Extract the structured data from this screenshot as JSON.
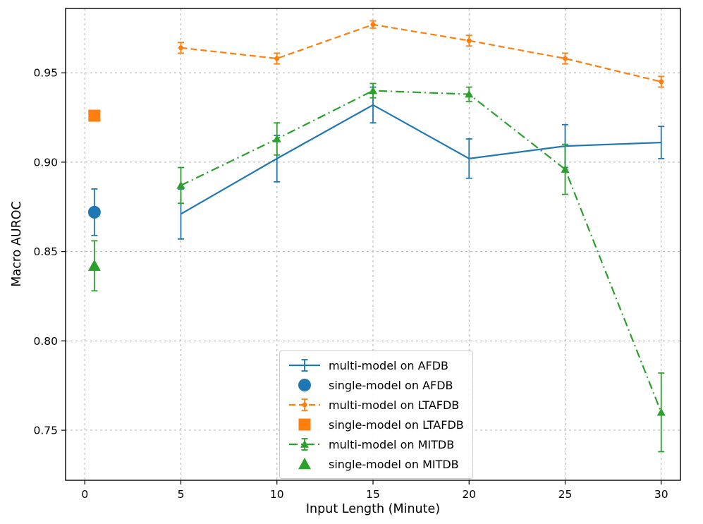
{
  "chart_data": {
    "type": "line",
    "title": "",
    "xlabel": "Input Length (Minute)",
    "ylabel": "Macro AUROC",
    "xlim": [
      -1.0,
      31.0
    ],
    "ylim": [
      0.722,
      0.986
    ],
    "xticks": [
      0,
      5,
      10,
      15,
      20,
      25,
      30
    ],
    "yticks": [
      0.75,
      0.8,
      0.85,
      0.9,
      0.95
    ],
    "grid": true,
    "legend_position": "lower-center",
    "series": [
      {
        "name": "multi-model on AFDB",
        "color": "#1f77b4",
        "line_style": "solid",
        "marker": "none",
        "marker_size": 0,
        "x": [
          5,
          10,
          15,
          20,
          25,
          30
        ],
        "y": [
          0.871,
          0.902,
          0.932,
          0.902,
          0.909,
          0.911
        ],
        "yerr": [
          0.014,
          0.013,
          0.01,
          0.011,
          0.012,
          0.009
        ]
      },
      {
        "name": "single-model on AFDB",
        "color": "#1f77b4",
        "line_style": "none",
        "marker": "circle",
        "marker_size": 9,
        "x": [
          0.5
        ],
        "y": [
          0.872
        ],
        "yerr": [
          0.013
        ]
      },
      {
        "name": "multi-model on LTAFDB",
        "color": "#ff7f0e",
        "line_style": "dashed",
        "marker": "circle",
        "marker_size": 3.5,
        "x": [
          5,
          10,
          15,
          20,
          25,
          30
        ],
        "y": [
          0.964,
          0.958,
          0.977,
          0.968,
          0.958,
          0.945
        ],
        "yerr": [
          0.003,
          0.003,
          0.002,
          0.003,
          0.003,
          0.003
        ]
      },
      {
        "name": "single-model on LTAFDB",
        "color": "#ff7f0e",
        "line_style": "none",
        "marker": "square",
        "marker_size": 8.5,
        "x": [
          0.5
        ],
        "y": [
          0.926
        ],
        "yerr": [
          0.002
        ]
      },
      {
        "name": "multi-model on MITDB",
        "color": "#2ca02c",
        "line_style": "dashdot",
        "marker": "triangle",
        "marker_size": 6,
        "x": [
          5,
          10,
          15,
          20,
          25,
          30
        ],
        "y": [
          0.887,
          0.913,
          0.94,
          0.938,
          0.896,
          0.76
        ],
        "yerr": [
          0.01,
          0.009,
          0.004,
          0.004,
          0.014,
          0.022
        ]
      },
      {
        "name": "single-model on MITDB",
        "color": "#2ca02c",
        "line_style": "none",
        "marker": "triangle",
        "marker_size": 9,
        "x": [
          0.5
        ],
        "y": [
          0.842
        ],
        "yerr": [
          0.014
        ]
      }
    ]
  }
}
